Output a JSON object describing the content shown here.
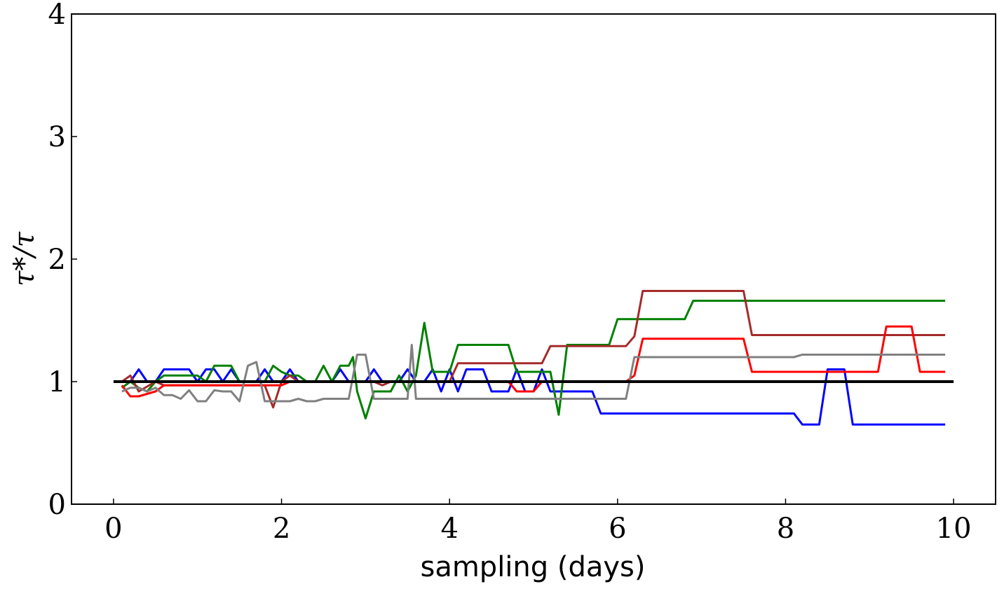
{
  "chart_data": {
    "type": "line",
    "title": "",
    "xlabel": "sampling (days)",
    "ylabel": "τ*/τ",
    "xlim": [
      -0.5,
      10.5
    ],
    "ylim": [
      0,
      4
    ],
    "xticks": [
      0,
      2,
      4,
      6,
      8,
      10
    ],
    "yticks": [
      0,
      1,
      2,
      3,
      4
    ],
    "grid": false,
    "reference_line": {
      "y": 1,
      "color": "#000000"
    },
    "series": [
      {
        "name": "blue",
        "color": "#0000ff",
        "points": [
          [
            0.1,
            1.0
          ],
          [
            0.2,
            1.0
          ],
          [
            0.3,
            1.1
          ],
          [
            0.4,
            1.0
          ],
          [
            0.5,
            1.0
          ],
          [
            0.6,
            1.1
          ],
          [
            0.7,
            1.1
          ],
          [
            0.8,
            1.1
          ],
          [
            0.9,
            1.1
          ],
          [
            1.0,
            1.0
          ],
          [
            1.1,
            1.1
          ],
          [
            1.2,
            1.1
          ],
          [
            1.3,
            1.0
          ],
          [
            1.4,
            1.1
          ],
          [
            1.5,
            1.0
          ],
          [
            1.6,
            1.0
          ],
          [
            1.7,
            1.0
          ],
          [
            1.8,
            1.1
          ],
          [
            1.9,
            1.0
          ],
          [
            2.0,
            1.0
          ],
          [
            2.1,
            1.1
          ],
          [
            2.2,
            1.0
          ],
          [
            2.3,
            1.0
          ],
          [
            2.4,
            1.0
          ],
          [
            2.5,
            1.0
          ],
          [
            2.6,
            1.0
          ],
          [
            2.7,
            1.1
          ],
          [
            2.8,
            1.0
          ],
          [
            2.9,
            1.0
          ],
          [
            3.0,
            1.0
          ],
          [
            3.1,
            1.1
          ],
          [
            3.2,
            1.0
          ],
          [
            3.3,
            1.0
          ],
          [
            3.4,
            1.0
          ],
          [
            3.5,
            1.1
          ],
          [
            3.6,
            1.0
          ],
          [
            3.7,
            1.0
          ],
          [
            3.8,
            1.1
          ],
          [
            3.9,
            0.92
          ],
          [
            4.0,
            1.1
          ],
          [
            4.1,
            0.92
          ],
          [
            4.2,
            1.1
          ],
          [
            4.4,
            1.1
          ],
          [
            4.5,
            0.92
          ],
          [
            4.7,
            0.92
          ],
          [
            4.8,
            1.1
          ],
          [
            4.9,
            0.92
          ],
          [
            5.0,
            0.92
          ],
          [
            5.1,
            1.1
          ],
          [
            5.2,
            0.92
          ],
          [
            5.7,
            0.92
          ],
          [
            5.8,
            0.74
          ],
          [
            8.1,
            0.74
          ],
          [
            8.2,
            0.65
          ],
          [
            8.4,
            0.65
          ],
          [
            8.5,
            1.1
          ],
          [
            8.7,
            1.1
          ],
          [
            8.8,
            0.65
          ],
          [
            9.9,
            0.65
          ]
        ]
      },
      {
        "name": "green",
        "color": "#008000",
        "points": [
          [
            0.1,
            0.95
          ],
          [
            0.2,
            1.0
          ],
          [
            0.3,
            0.95
          ],
          [
            0.4,
            0.92
          ],
          [
            0.5,
            1.0
          ],
          [
            0.6,
            1.05
          ],
          [
            0.9,
            1.05
          ],
          [
            1.0,
            1.05
          ],
          [
            1.1,
            1.0
          ],
          [
            1.2,
            1.13
          ],
          [
            1.4,
            1.13
          ],
          [
            1.5,
            1.0
          ],
          [
            1.8,
            1.0
          ],
          [
            1.9,
            1.13
          ],
          [
            2.0,
            1.08
          ],
          [
            2.1,
            1.05
          ],
          [
            2.2,
            1.05
          ],
          [
            2.3,
            1.0
          ],
          [
            2.4,
            1.0
          ],
          [
            2.5,
            1.13
          ],
          [
            2.6,
            1.0
          ],
          [
            2.7,
            1.13
          ],
          [
            2.8,
            1.13
          ],
          [
            2.85,
            1.2
          ],
          [
            2.9,
            0.92
          ],
          [
            3.0,
            0.7
          ],
          [
            3.1,
            0.92
          ],
          [
            3.3,
            0.92
          ],
          [
            3.4,
            1.05
          ],
          [
            3.5,
            0.92
          ],
          [
            3.6,
            1.05
          ],
          [
            3.7,
            1.48
          ],
          [
            3.8,
            1.08
          ],
          [
            4.0,
            1.08
          ],
          [
            4.1,
            1.3
          ],
          [
            4.7,
            1.3
          ],
          [
            4.8,
            1.08
          ],
          [
            5.2,
            1.08
          ],
          [
            5.3,
            0.73
          ],
          [
            5.4,
            1.3
          ],
          [
            5.9,
            1.3
          ],
          [
            6.0,
            1.51
          ],
          [
            6.8,
            1.51
          ],
          [
            6.9,
            1.66
          ],
          [
            9.9,
            1.66
          ]
        ]
      },
      {
        "name": "brown",
        "color": "#a52a2a",
        "points": [
          [
            0.1,
            1.0
          ],
          [
            0.2,
            1.05
          ],
          [
            0.3,
            0.92
          ],
          [
            0.5,
            1.0
          ],
          [
            0.6,
            0.97
          ],
          [
            1.8,
            0.97
          ],
          [
            1.9,
            0.79
          ],
          [
            2.0,
            1.0
          ],
          [
            2.1,
            1.05
          ],
          [
            2.2,
            1.0
          ],
          [
            3.0,
            1.0
          ],
          [
            3.1,
            1.0
          ],
          [
            3.2,
            0.97
          ],
          [
            3.3,
            1.0
          ],
          [
            4.0,
            1.0
          ],
          [
            4.1,
            1.15
          ],
          [
            5.0,
            1.15
          ],
          [
            5.1,
            1.15
          ],
          [
            5.2,
            1.29
          ],
          [
            6.1,
            1.29
          ],
          [
            6.2,
            1.37
          ],
          [
            6.3,
            1.74
          ],
          [
            7.5,
            1.74
          ],
          [
            7.6,
            1.38
          ],
          [
            9.9,
            1.38
          ]
        ]
      },
      {
        "name": "red",
        "color": "#ff0000",
        "points": [
          [
            0.1,
            0.97
          ],
          [
            0.2,
            0.88
          ],
          [
            0.3,
            0.88
          ],
          [
            0.4,
            0.9
          ],
          [
            0.5,
            0.92
          ],
          [
            0.6,
            0.97
          ],
          [
            2.0,
            0.97
          ],
          [
            2.1,
            1.0
          ],
          [
            3.0,
            1.0
          ],
          [
            4.7,
            1.0
          ],
          [
            4.8,
            0.92
          ],
          [
            5.0,
            0.92
          ],
          [
            5.1,
            1.0
          ],
          [
            6.1,
            1.0
          ],
          [
            6.2,
            1.05
          ],
          [
            6.3,
            1.35
          ],
          [
            7.5,
            1.35
          ],
          [
            7.6,
            1.08
          ],
          [
            9.1,
            1.08
          ],
          [
            9.2,
            1.45
          ],
          [
            9.5,
            1.45
          ],
          [
            9.6,
            1.08
          ],
          [
            9.9,
            1.08
          ]
        ]
      },
      {
        "name": "gray",
        "color": "#808080",
        "points": [
          [
            0.1,
            0.92
          ],
          [
            0.2,
            0.95
          ],
          [
            0.3,
            0.95
          ],
          [
            0.4,
            0.92
          ],
          [
            0.5,
            0.95
          ],
          [
            0.6,
            0.89
          ],
          [
            0.7,
            0.89
          ],
          [
            0.8,
            0.86
          ],
          [
            0.9,
            0.93
          ],
          [
            1.0,
            0.84
          ],
          [
            1.1,
            0.84
          ],
          [
            1.2,
            0.93
          ],
          [
            1.3,
            0.92
          ],
          [
            1.4,
            0.92
          ],
          [
            1.5,
            0.84
          ],
          [
            1.6,
            1.13
          ],
          [
            1.7,
            1.16
          ],
          [
            1.8,
            0.84
          ],
          [
            2.0,
            0.84
          ],
          [
            2.1,
            0.84
          ],
          [
            2.2,
            0.86
          ],
          [
            2.3,
            0.84
          ],
          [
            2.4,
            0.84
          ],
          [
            2.5,
            0.86
          ],
          [
            2.8,
            0.86
          ],
          [
            2.9,
            1.22
          ],
          [
            3.0,
            1.22
          ],
          [
            3.1,
            0.86
          ],
          [
            3.4,
            0.86
          ],
          [
            3.5,
            0.86
          ],
          [
            3.55,
            1.3
          ],
          [
            3.6,
            0.86
          ],
          [
            6.1,
            0.86
          ],
          [
            6.2,
            1.2
          ],
          [
            8.1,
            1.2
          ],
          [
            8.2,
            1.22
          ],
          [
            9.9,
            1.22
          ]
        ]
      }
    ]
  }
}
